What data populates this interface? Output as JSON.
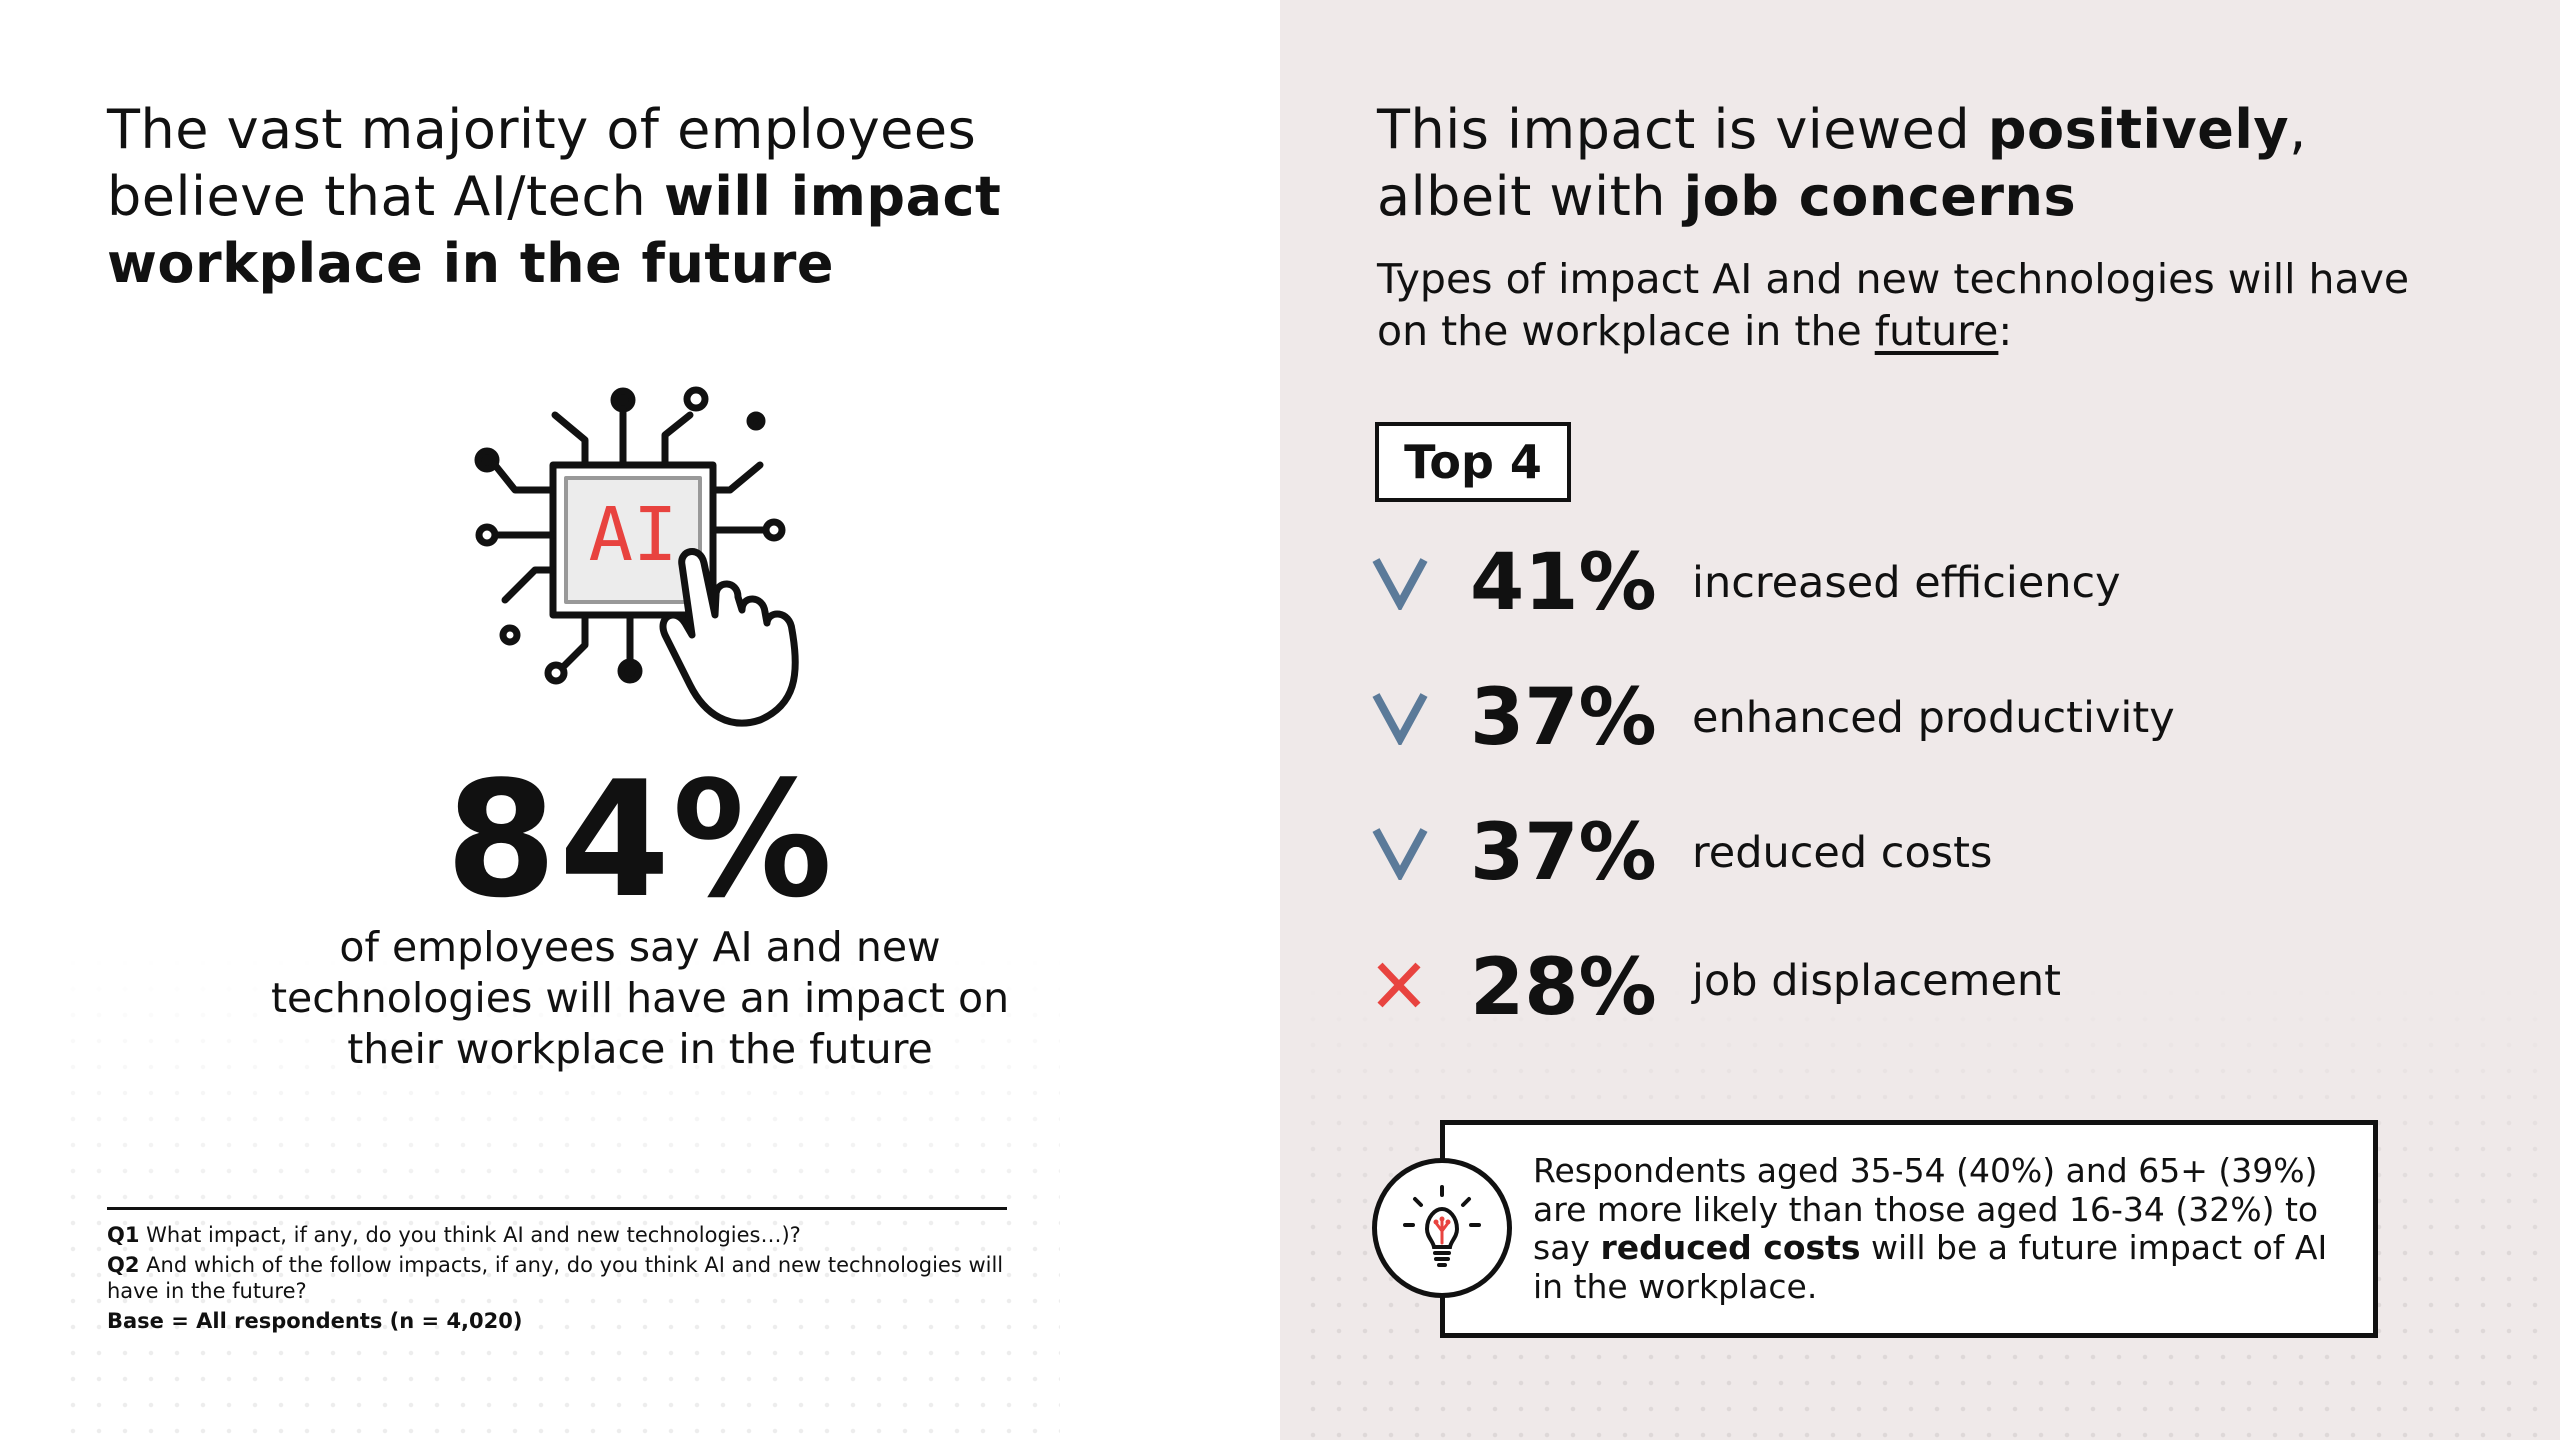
{
  "left": {
    "heading_pre": "The vast majority of employees believe that AI/tech ",
    "heading_bold": "will impact workplace in the future",
    "icon_text": "AI",
    "stat_value": "84%",
    "stat_description": "of employees say AI and new technologies will have an impact on their workplace in the future",
    "footnotes": {
      "q1_label": "Q1",
      "q1_text": " What impact, if any, do you think AI and new technologies…)?",
      "q2_label": "Q2",
      "q2_text": " And which of the follow impacts, if any, do you think AI and new technologies will have in the future?",
      "base_text": "Base = All respondents (n = 4,020)"
    }
  },
  "right": {
    "heading_pre": "This impact is viewed ",
    "heading_bold1": "positively",
    "heading_mid": ", albeit with ",
    "heading_bold2": "job concerns",
    "subheading_pre": "Types of impact AI and new technologies will have on the workplace in the ",
    "subheading_underlined": "future",
    "subheading_post": ":",
    "badge": "Top 4",
    "impacts": [
      {
        "value": "41%",
        "label": "increased efficiency",
        "mark": "check-icon"
      },
      {
        "value": "37%",
        "label": "enhanced productivity",
        "mark": "check-icon"
      },
      {
        "value": "37%",
        "label": "reduced costs",
        "mark": "check-icon"
      },
      {
        "value": "28%",
        "label": "job displacement",
        "mark": "cross-icon"
      }
    ],
    "callout": {
      "text_pre": "Respondents aged 35-54 (40%) and 65+ (39%) are more likely than those aged 16-34 (32%) to say ",
      "text_bold": "reduced costs",
      "text_post": " will be a future impact of AI in the workplace."
    }
  },
  "colors": {
    "check": "#5b7a99",
    "cross": "#e8433f",
    "ai_text": "#e8433f",
    "right_bg": "#efe9e9"
  }
}
